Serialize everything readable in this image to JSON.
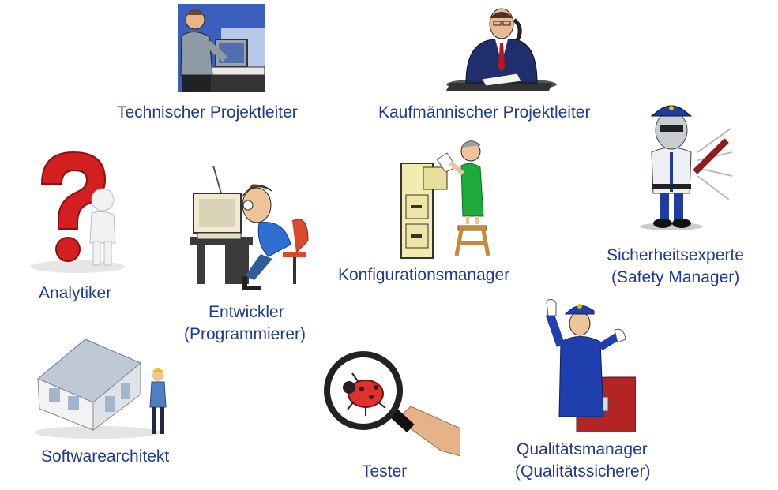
{
  "roles": {
    "technischer": {
      "label": "Technischer Projektleiter",
      "icon": "technician-at-computer-icon"
    },
    "kaufmaennischer": {
      "label": "Kaufmännischer Projektleiter",
      "icon": "businessman-on-phone-icon"
    },
    "sicherheit": {
      "line1": "Sicherheitsexperte",
      "line2": "(Safety Manager)",
      "icon": "security-guard-icon"
    },
    "analytiker": {
      "label": "Analytiker",
      "icon": "question-mark-figure-icon"
    },
    "entwickler": {
      "line1": "Entwickler",
      "line2": "(Programmierer)",
      "icon": "programmer-at-computer-icon"
    },
    "konfiguration": {
      "label": "Konfigurationsmanager",
      "icon": "woman-filing-cabinet-icon"
    },
    "architekt": {
      "label": "Softwarearchitekt",
      "icon": "architect-house-model-icon"
    },
    "tester": {
      "label": "Tester",
      "icon": "magnifier-bug-icon"
    },
    "qualitaet": {
      "line1": "Qualitätsmanager",
      "line2": "(Qualitätssicherer)",
      "icon": "police-officer-stop-icon"
    }
  },
  "colors": {
    "label_text": "#1f3a93",
    "background": "#ffffff"
  }
}
